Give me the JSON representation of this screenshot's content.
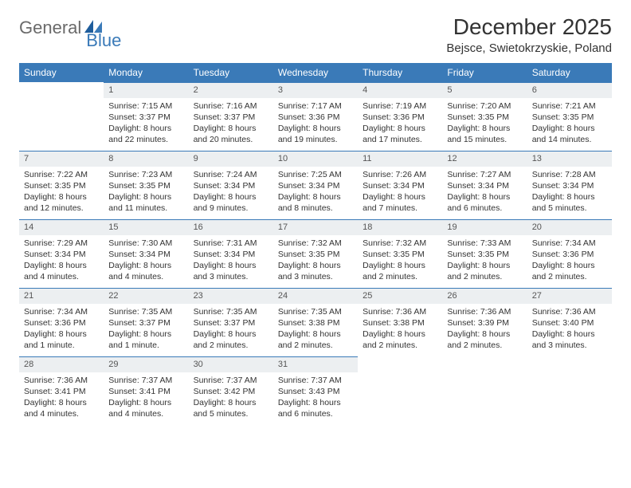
{
  "logo": {
    "text1": "General",
    "text2": "Blue"
  },
  "title": "December 2025",
  "location": "Bejsce, Swietokrzyskie, Poland",
  "colors": {
    "header_bg": "#3a7ab8",
    "header_text": "#ffffff",
    "daynum_bg": "#eceff1",
    "border": "#3a7ab8",
    "body_text": "#333333",
    "logo_gray": "#6a6a6a",
    "logo_blue": "#3a7ab8"
  },
  "typography": {
    "title_fontsize": 28,
    "location_fontsize": 15,
    "header_fontsize": 12,
    "cell_fontsize": 10.5
  },
  "day_labels": [
    "Sunday",
    "Monday",
    "Tuesday",
    "Wednesday",
    "Thursday",
    "Friday",
    "Saturday"
  ],
  "leading_blanks": 1,
  "days": [
    {
      "n": "1",
      "sunrise": "7:15 AM",
      "sunset": "3:37 PM",
      "daylight": "8 hours and 22 minutes."
    },
    {
      "n": "2",
      "sunrise": "7:16 AM",
      "sunset": "3:37 PM",
      "daylight": "8 hours and 20 minutes."
    },
    {
      "n": "3",
      "sunrise": "7:17 AM",
      "sunset": "3:36 PM",
      "daylight": "8 hours and 19 minutes."
    },
    {
      "n": "4",
      "sunrise": "7:19 AM",
      "sunset": "3:36 PM",
      "daylight": "8 hours and 17 minutes."
    },
    {
      "n": "5",
      "sunrise": "7:20 AM",
      "sunset": "3:35 PM",
      "daylight": "8 hours and 15 minutes."
    },
    {
      "n": "6",
      "sunrise": "7:21 AM",
      "sunset": "3:35 PM",
      "daylight": "8 hours and 14 minutes."
    },
    {
      "n": "7",
      "sunrise": "7:22 AM",
      "sunset": "3:35 PM",
      "daylight": "8 hours and 12 minutes."
    },
    {
      "n": "8",
      "sunrise": "7:23 AM",
      "sunset": "3:35 PM",
      "daylight": "8 hours and 11 minutes."
    },
    {
      "n": "9",
      "sunrise": "7:24 AM",
      "sunset": "3:34 PM",
      "daylight": "8 hours and 9 minutes."
    },
    {
      "n": "10",
      "sunrise": "7:25 AM",
      "sunset": "3:34 PM",
      "daylight": "8 hours and 8 minutes."
    },
    {
      "n": "11",
      "sunrise": "7:26 AM",
      "sunset": "3:34 PM",
      "daylight": "8 hours and 7 minutes."
    },
    {
      "n": "12",
      "sunrise": "7:27 AM",
      "sunset": "3:34 PM",
      "daylight": "8 hours and 6 minutes."
    },
    {
      "n": "13",
      "sunrise": "7:28 AM",
      "sunset": "3:34 PM",
      "daylight": "8 hours and 5 minutes."
    },
    {
      "n": "14",
      "sunrise": "7:29 AM",
      "sunset": "3:34 PM",
      "daylight": "8 hours and 4 minutes."
    },
    {
      "n": "15",
      "sunrise": "7:30 AM",
      "sunset": "3:34 PM",
      "daylight": "8 hours and 4 minutes."
    },
    {
      "n": "16",
      "sunrise": "7:31 AM",
      "sunset": "3:34 PM",
      "daylight": "8 hours and 3 minutes."
    },
    {
      "n": "17",
      "sunrise": "7:32 AM",
      "sunset": "3:35 PM",
      "daylight": "8 hours and 3 minutes."
    },
    {
      "n": "18",
      "sunrise": "7:32 AM",
      "sunset": "3:35 PM",
      "daylight": "8 hours and 2 minutes."
    },
    {
      "n": "19",
      "sunrise": "7:33 AM",
      "sunset": "3:35 PM",
      "daylight": "8 hours and 2 minutes."
    },
    {
      "n": "20",
      "sunrise": "7:34 AM",
      "sunset": "3:36 PM",
      "daylight": "8 hours and 2 minutes."
    },
    {
      "n": "21",
      "sunrise": "7:34 AM",
      "sunset": "3:36 PM",
      "daylight": "8 hours and 1 minute."
    },
    {
      "n": "22",
      "sunrise": "7:35 AM",
      "sunset": "3:37 PM",
      "daylight": "8 hours and 1 minute."
    },
    {
      "n": "23",
      "sunrise": "7:35 AM",
      "sunset": "3:37 PM",
      "daylight": "8 hours and 2 minutes."
    },
    {
      "n": "24",
      "sunrise": "7:35 AM",
      "sunset": "3:38 PM",
      "daylight": "8 hours and 2 minutes."
    },
    {
      "n": "25",
      "sunrise": "7:36 AM",
      "sunset": "3:38 PM",
      "daylight": "8 hours and 2 minutes."
    },
    {
      "n": "26",
      "sunrise": "7:36 AM",
      "sunset": "3:39 PM",
      "daylight": "8 hours and 2 minutes."
    },
    {
      "n": "27",
      "sunrise": "7:36 AM",
      "sunset": "3:40 PM",
      "daylight": "8 hours and 3 minutes."
    },
    {
      "n": "28",
      "sunrise": "7:36 AM",
      "sunset": "3:41 PM",
      "daylight": "8 hours and 4 minutes."
    },
    {
      "n": "29",
      "sunrise": "7:37 AM",
      "sunset": "3:41 PM",
      "daylight": "8 hours and 4 minutes."
    },
    {
      "n": "30",
      "sunrise": "7:37 AM",
      "sunset": "3:42 PM",
      "daylight": "8 hours and 5 minutes."
    },
    {
      "n": "31",
      "sunrise": "7:37 AM",
      "sunset": "3:43 PM",
      "daylight": "8 hours and 6 minutes."
    }
  ],
  "labels": {
    "sunrise": "Sunrise: ",
    "sunset": "Sunset: ",
    "daylight": "Daylight: "
  }
}
